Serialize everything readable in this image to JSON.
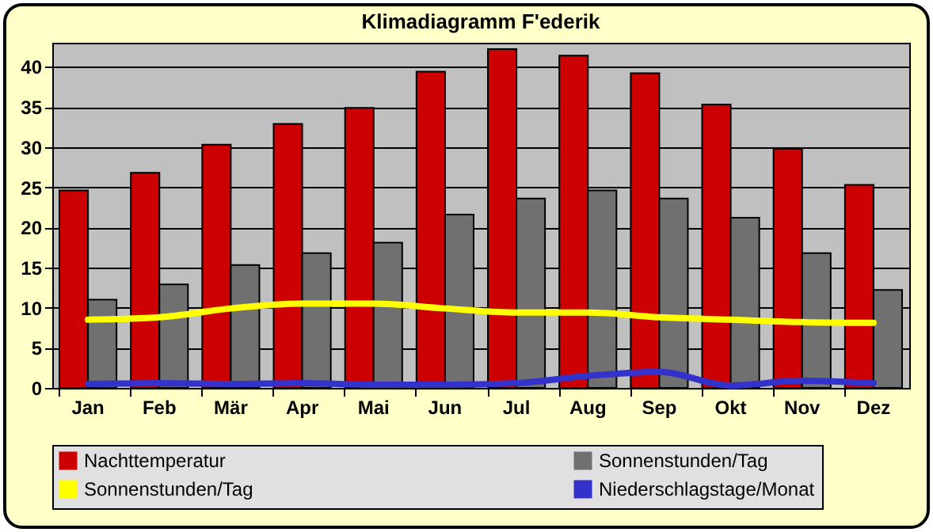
{
  "chart_data": {
    "type": "bar",
    "title": "Klimadiagramm F'ederik",
    "categories": [
      "Jan",
      "Feb",
      "Mär",
      "Apr",
      "Mai",
      "Jun",
      "Jul",
      "Aug",
      "Sep",
      "Okt",
      "Nov",
      "Dez"
    ],
    "ylim": [
      0,
      43
    ],
    "yticks": [
      0,
      5,
      10,
      15,
      20,
      25,
      30,
      35,
      40
    ],
    "grid": "y",
    "legend": "bottom",
    "series": [
      {
        "name": "Nachttemperatur",
        "color": "#cc0000",
        "values": [
          24.6,
          26.8,
          30.3,
          32.9,
          34.9,
          39.4,
          42.2,
          41.4,
          39.2,
          35.3,
          29.8,
          25.3
        ]
      },
      {
        "name": "Sonnenstunden/Tag",
        "color": "#707070",
        "values": [
          11.0,
          12.9,
          15.3,
          16.8,
          18.1,
          21.6,
          23.6,
          24.6,
          23.6,
          21.2,
          16.8,
          12.2
        ]
      },
      {
        "name": "Sonnenstunden/Tag",
        "type": "line",
        "color": "#ffff00",
        "values": [
          8.5,
          8.8,
          9.9,
          10.5,
          10.5,
          9.9,
          9.4,
          9.4,
          8.8,
          8.5,
          8.2,
          8.1
        ]
      },
      {
        "name": "Niederschlagstage/Monat",
        "type": "line",
        "color": "#3333cc",
        "values": [
          0.5,
          0.6,
          0.5,
          0.6,
          0.4,
          0.4,
          0.6,
          1.5,
          2.0,
          0.3,
          0.9,
          0.6
        ]
      }
    ]
  }
}
